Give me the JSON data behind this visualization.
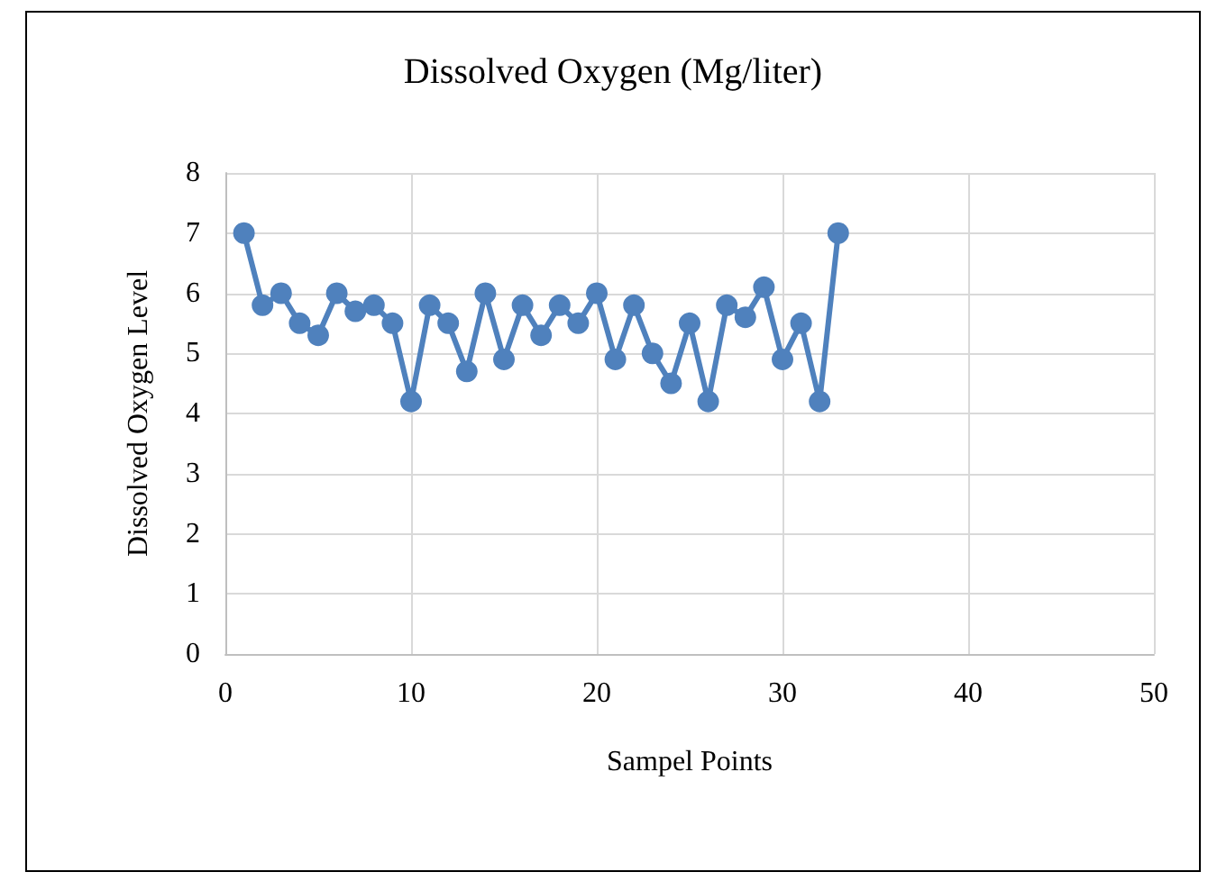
{
  "chart_data": {
    "type": "line",
    "title": "Dissolved Oxygen (Mg/liter)",
    "xlabel": "Sampel Points",
    "ylabel": "Dissolved Oxygen Level",
    "x": [
      1,
      2,
      3,
      4,
      5,
      6,
      7,
      8,
      9,
      10,
      11,
      12,
      13,
      14,
      15,
      16,
      17,
      18,
      19,
      20,
      21,
      22,
      23,
      24,
      25,
      26,
      27,
      28,
      29,
      30,
      31,
      32,
      33
    ],
    "series": [
      {
        "color": "#4f81bd",
        "values": [
          7,
          5.8,
          6,
          5.5,
          5.3,
          6,
          5.7,
          5.8,
          5.5,
          4.2,
          5.8,
          5.5,
          4.7,
          6,
          4.9,
          5.8,
          5.3,
          5.8,
          5.5,
          6,
          4.9,
          5.8,
          5,
          4.5,
          5.5,
          4.2,
          5.8,
          5.6,
          6.1,
          4.9,
          5.5,
          4.2,
          7
        ]
      }
    ],
    "xlim": [
      0,
      50
    ],
    "xticks": [
      0,
      10,
      20,
      30,
      40,
      50
    ],
    "ylim": [
      0,
      8
    ],
    "yticks": [
      0,
      1,
      2,
      3,
      4,
      5,
      6,
      7,
      8
    ],
    "grid": true,
    "marker": "circle",
    "line_style": "solid"
  }
}
